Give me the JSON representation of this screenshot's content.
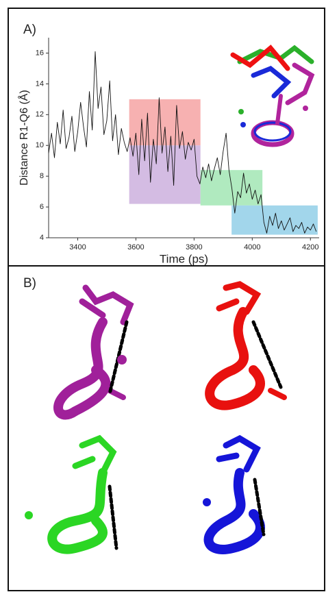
{
  "panels": {
    "a_label": "A)",
    "b_label": "B)"
  },
  "chart_data": {
    "type": "line",
    "x_label": "Time (ps)",
    "y_label": "Distance R1-Q6 (Å)",
    "xlim": [
      3300,
      4230
    ],
    "ylim": [
      4,
      17
    ],
    "xticks": [
      3400,
      3600,
      3800,
      4000,
      4200
    ],
    "yticks": [
      4,
      6,
      8,
      10,
      12,
      14,
      16
    ],
    "regions": [
      {
        "x": [
          3577,
          3822
        ],
        "y": [
          10,
          13
        ],
        "color": "#f6a3a3"
      },
      {
        "x": [
          3577,
          3822
        ],
        "y": [
          6.2,
          10
        ],
        "color": "#cdb0de"
      },
      {
        "x": [
          3822,
          4035
        ],
        "y": [
          6.1,
          8.4
        ],
        "color": "#a2e6b4"
      },
      {
        "x": [
          3929,
          4225
        ],
        "y": [
          4.2,
          6.1
        ],
        "color": "#92cfe8"
      }
    ],
    "x": [
      3300,
      3310,
      3320,
      3330,
      3340,
      3350,
      3360,
      3370,
      3380,
      3390,
      3400,
      3410,
      3420,
      3430,
      3440,
      3450,
      3460,
      3470,
      3480,
      3490,
      3500,
      3510,
      3520,
      3530,
      3540,
      3550,
      3560,
      3570,
      3580,
      3590,
      3600,
      3610,
      3620,
      3630,
      3640,
      3650,
      3660,
      3670,
      3680,
      3690,
      3700,
      3710,
      3720,
      3730,
      3740,
      3750,
      3760,
      3770,
      3780,
      3790,
      3800,
      3810,
      3820,
      3830,
      3840,
      3850,
      3860,
      3870,
      3880,
      3890,
      3900,
      3910,
      3920,
      3930,
      3940,
      3950,
      3960,
      3970,
      3980,
      3990,
      4000,
      4010,
      4020,
      4030,
      4040,
      4050,
      4060,
      4070,
      4080,
      4090,
      4100,
      4110,
      4120,
      4130,
      4140,
      4150,
      4160,
      4170,
      4180,
      4190,
      4200,
      4210,
      4220
    ],
    "series": [
      {
        "color": "#111111",
        "values": [
          9.5,
          10.8,
          9.2,
          11.5,
          10.1,
          12.3,
          9.8,
          10.5,
          11.9,
          9.6,
          10.9,
          12.8,
          11.2,
          9.9,
          13.5,
          11.0,
          16.1,
          12.4,
          13.8,
          10.7,
          11.6,
          14.2,
          10.3,
          12.0,
          9.4,
          11.1,
          10.2,
          9.6,
          10.5,
          9.3,
          10.8,
          8.1,
          11.7,
          9.0,
          12.1,
          7.6,
          10.4,
          8.8,
          13.1,
          9.5,
          11.2,
          8.3,
          10.6,
          7.4,
          12.6,
          9.8,
          10.9,
          9.1,
          10.2,
          9.7,
          10.4,
          8.0,
          7.5,
          8.6,
          7.9,
          8.8,
          7.7,
          8.5,
          9.2,
          8.1,
          9.6,
          10.8,
          8.4,
          7.2,
          5.6,
          7.0,
          6.6,
          8.2,
          6.9,
          7.5,
          6.5,
          7.1,
          6.2,
          6.8,
          5.0,
          4.3,
          5.4,
          4.8,
          5.6,
          4.6,
          5.1,
          4.5,
          4.9,
          5.3,
          4.4,
          4.8,
          4.6,
          5.0,
          4.3,
          4.7,
          4.5,
          4.9,
          4.4
        ]
      }
    ]
  }
}
